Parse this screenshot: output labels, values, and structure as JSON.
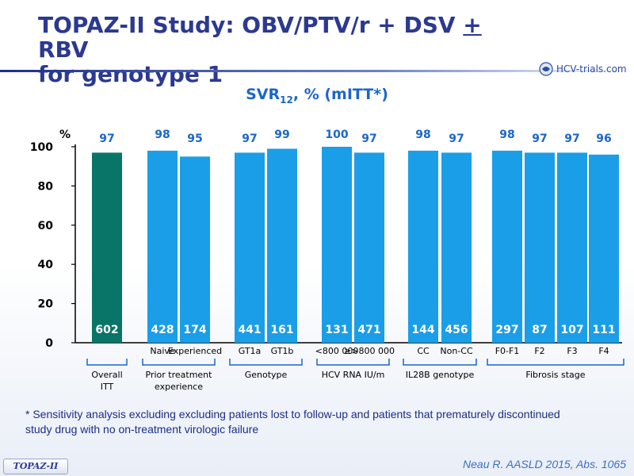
{
  "title": {
    "line1_pre": "TOPAZ-II Study: OBV/PTV/r + DSV ",
    "line1_plus": "+",
    "line1_post": " RBV",
    "line2": "for genotype 1"
  },
  "logo": {
    "text": "HCV-trials.com",
    "icon": "hcv-trials-logo-icon"
  },
  "subtitle": {
    "main": "SVR",
    "sub": "12",
    "rest": ", % (mITT*)"
  },
  "colors": {
    "bar": "#1a9ee8",
    "bar_highlight": "#087568",
    "title": "#2b3990",
    "accent": "#1c66c8"
  },
  "chart_data": {
    "type": "bar",
    "ylabel": "%",
    "ylim": [
      0,
      100
    ],
    "yticks": [
      0,
      20,
      40,
      60,
      80,
      100
    ],
    "grid": false,
    "categories": [
      "",
      "Naive",
      "Experienced",
      "GT1a",
      "GT1b",
      "<800 000",
      ">800 000",
      "CC",
      "Non-CC",
      "F0-F1",
      "F2",
      "F3",
      "F4"
    ],
    "category_prefix": {
      "6": "≥"
    },
    "values": [
      97,
      98,
      95,
      97,
      99,
      100,
      97,
      98,
      97,
      98,
      97,
      97,
      96
    ],
    "n_labels": [
      "602",
      "428",
      "174",
      "441",
      "161",
      "131",
      "471",
      "144",
      "456",
      "297",
      "87",
      "107",
      "111"
    ],
    "highlight_index": 0,
    "groups": [
      {
        "label": "Overall\nITT",
        "bars": [
          0,
          0
        ]
      },
      {
        "label": "Prior treatment\nexperience",
        "bars": [
          1,
          2
        ]
      },
      {
        "label": "Genotype",
        "bars": [
          3,
          4
        ]
      },
      {
        "label": "HCV RNA IU/m",
        "bars": [
          5,
          6
        ]
      },
      {
        "label": "IL28B genotype",
        "bars": [
          7,
          8
        ]
      },
      {
        "label": "Fibrosis stage",
        "bars": [
          9,
          12
        ]
      }
    ]
  },
  "footnote": "* Sensitivity analysis excluding excluding patients lost to follow-up and patients that prematurely discontinued study drug with no on-treatment virologic failure",
  "badge": "TOPAZ-II",
  "citation": "Neau R. AASLD 2015, Abs. 1065"
}
